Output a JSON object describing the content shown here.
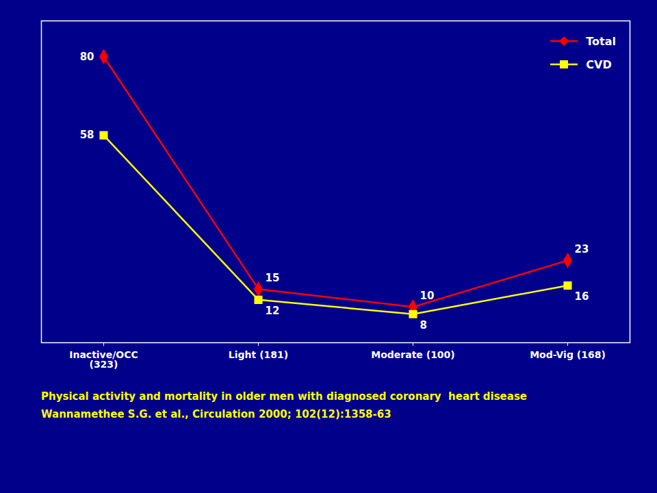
{
  "chart_data": {
    "type": "line",
    "categories": [
      "Inactive/OCC\n(323)",
      "Light (181)",
      "Moderate (100)",
      "Mod-Vig (168)"
    ],
    "series": [
      {
        "name": "Total",
        "color": "#FF0000",
        "marker": "diamond",
        "values": [
          80,
          15,
          10,
          23
        ]
      },
      {
        "name": "CVD",
        "color": "#FFFF00",
        "marker": "square",
        "values": [
          58,
          12,
          8,
          16
        ]
      }
    ],
    "ylim": [
      0,
      90
    ],
    "tick_labels": "x",
    "grid": false,
    "legend": "upper right",
    "data_labels": true,
    "annotations": [
      "Physical activity and mortality in older men with diagnosed coronary  heart disease",
      "Wannamethee S.G. et al., Circulation 2000; 102(12):1358-63"
    ]
  }
}
